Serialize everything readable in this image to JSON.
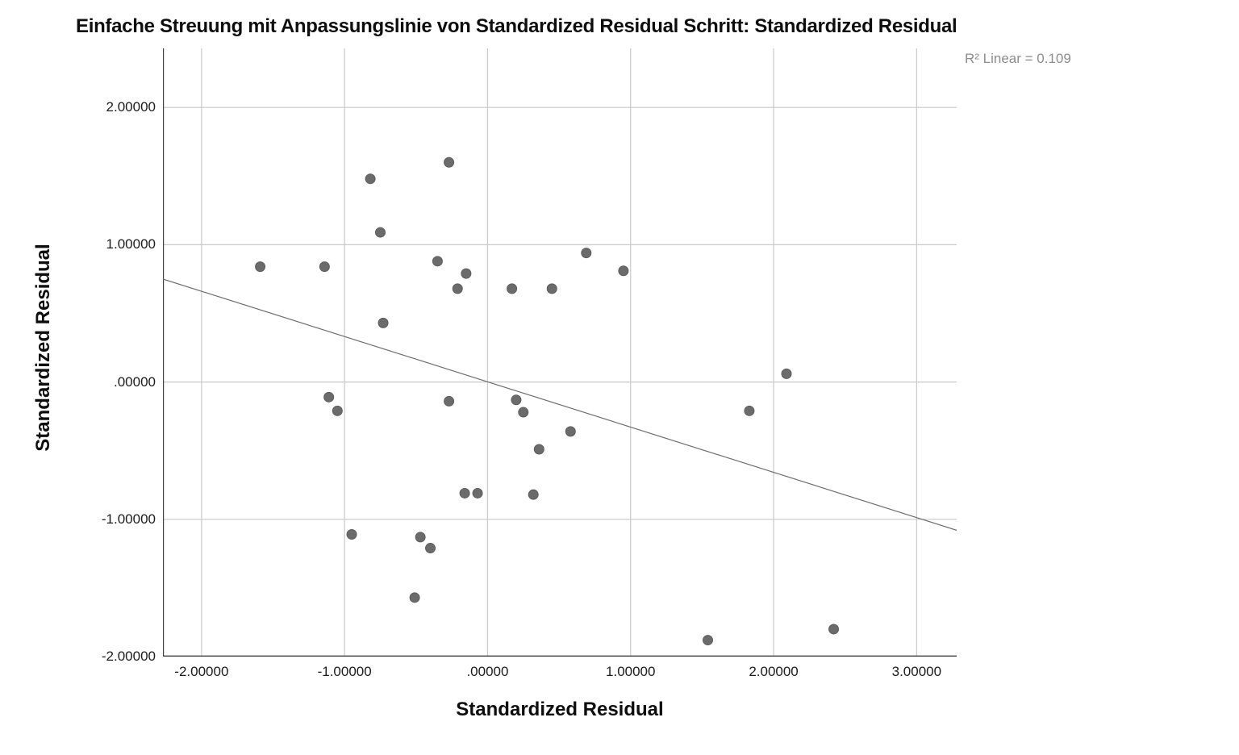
{
  "header": {
    "title": "Einfache Streuung mit Anpassungslinie  von Standardized Residual Schritt: Standardized Residual",
    "r2_annotation": "R² Linear = 0.109"
  },
  "chart_data": {
    "type": "scatter",
    "title": "Einfache Streuung mit Anpassungslinie  von Standardized Residual Schritt: Standardized Residual",
    "xlabel": "Standardized Residual",
    "ylabel": "Standardized Residual",
    "annotation": "R² Linear = 0.109",
    "r_squared": 0.109,
    "legend": "none",
    "grid": true,
    "xlim": [
      -2.27,
      3.28
    ],
    "ylim": [
      -2.0,
      2.43
    ],
    "x_ticks": [
      {
        "value": -2,
        "label": "-2.00000"
      },
      {
        "value": -1,
        "label": "-1.00000"
      },
      {
        "value": 0,
        "label": ".00000"
      },
      {
        "value": 1,
        "label": "1.00000"
      },
      {
        "value": 2,
        "label": "2.00000"
      },
      {
        "value": 3,
        "label": "3.00000"
      }
    ],
    "y_ticks": [
      {
        "value": 2,
        "label": "2.00000"
      },
      {
        "value": 1,
        "label": "1.00000"
      },
      {
        "value": 0,
        "label": ".00000"
      },
      {
        "value": -1,
        "label": "-1.00000"
      },
      {
        "value": -2,
        "label": "-2.00000"
      }
    ],
    "points": [
      [
        -1.59,
        0.84
      ],
      [
        -1.14,
        0.84
      ],
      [
        -0.82,
        1.48
      ],
      [
        -0.75,
        1.09
      ],
      [
        -0.27,
        1.6
      ],
      [
        -0.35,
        0.88
      ],
      [
        -0.15,
        0.79
      ],
      [
        -0.21,
        0.68
      ],
      [
        0.17,
        0.68
      ],
      [
        0.45,
        0.68
      ],
      [
        0.69,
        0.94
      ],
      [
        0.95,
        0.81
      ],
      [
        -0.73,
        0.43
      ],
      [
        -1.11,
        -0.11
      ],
      [
        -1.05,
        -0.21
      ],
      [
        -0.27,
        -0.14
      ],
      [
        0.2,
        -0.13
      ],
      [
        0.25,
        -0.22
      ],
      [
        0.58,
        -0.36
      ],
      [
        0.36,
        -0.49
      ],
      [
        -0.16,
        -0.81
      ],
      [
        -0.07,
        -0.81
      ],
      [
        0.32,
        -0.82
      ],
      [
        -0.95,
        -1.11
      ],
      [
        -0.47,
        -1.13
      ],
      [
        -0.4,
        -1.21
      ],
      [
        -0.51,
        -1.57
      ],
      [
        1.54,
        -1.88
      ],
      [
        2.42,
        -1.8
      ],
      [
        2.09,
        0.06
      ],
      [
        1.83,
        -0.21
      ]
    ],
    "fit_line": {
      "x1": -2.27,
      "y1": 0.75,
      "x2": 3.28,
      "y2": -1.08,
      "slope": -0.33,
      "intercept": 0.0
    },
    "colors": {
      "marker": "#6b6b6b",
      "marker_edge": "#5d5d5d",
      "grid": "#c9c9c9",
      "axis": "#3f3f3f",
      "fit_line": "#6d6d6d",
      "annotation_text": "#8d8d8d",
      "text": "#0e0e0e",
      "background": "#ffffff"
    }
  }
}
